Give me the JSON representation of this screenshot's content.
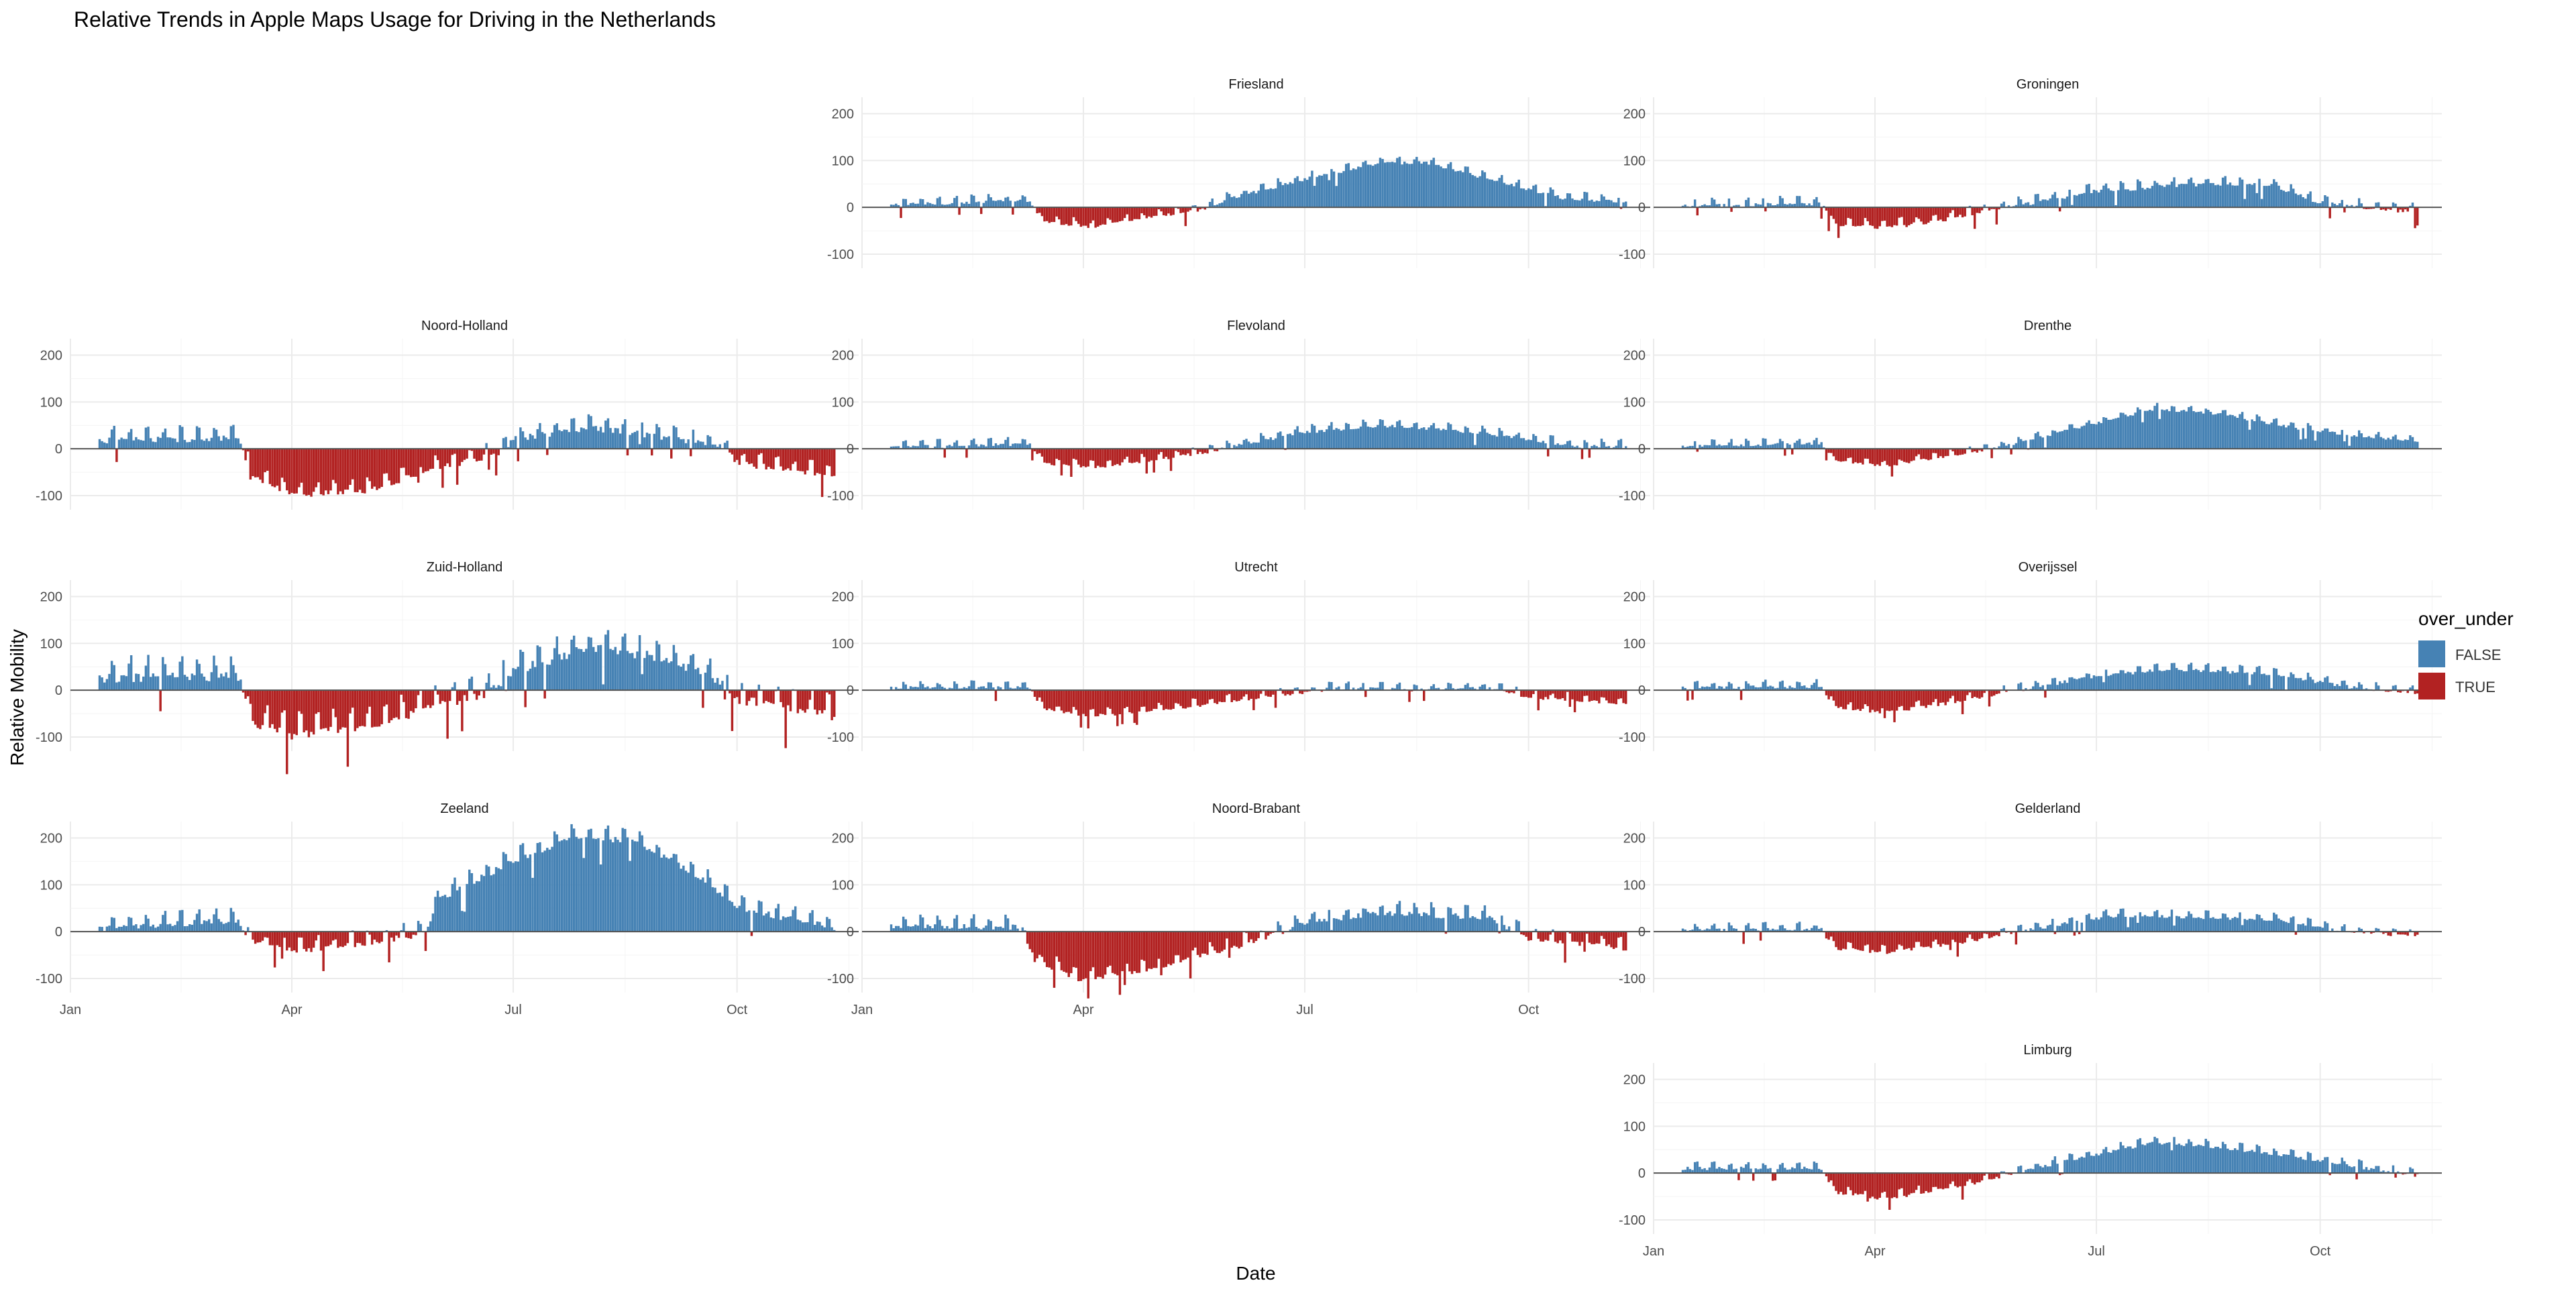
{
  "title": "Relative Trends in Apple Maps Usage for Driving in the Netherlands",
  "xlabel": "Date",
  "ylabel": "Relative Mobility",
  "legend": {
    "title": "over_under",
    "entries": [
      {
        "label": "FALSE",
        "color": "#4682B4"
      },
      {
        "label": "TRUE",
        "color": "#B22222"
      }
    ]
  },
  "x_ticks": [
    "Jan",
    "Apr",
    "Jul",
    "Oct"
  ],
  "x_tick_dates": [
    "2020-01-01",
    "2020-04-01",
    "2020-07-01",
    "2020-10-01"
  ],
  "y_ticks": [
    "-100",
    "0",
    "100",
    "200"
  ],
  "chart_data": {
    "type": "bar",
    "facet_layout": "3-column grid, 5 rows; panels without an x-axis label row share the Date axis below",
    "xlim": [
      "2020-01-01",
      "2020-11-20"
    ],
    "ylim": [
      -130,
      235
    ],
    "grid": true,
    "legend_position": "right",
    "colors": {
      "FALSE": "#4682B4",
      "TRUE": "#B22222"
    },
    "date_start": "2020-01-13",
    "date_end": "2020-11-10",
    "value_rule": "over_under = TRUE when value < 0",
    "panels": [
      {
        "name": "Friesland",
        "row": 1,
        "col": 2,
        "x_axis": false,
        "trend_points": [
          [
            "2020-01-13",
            5
          ],
          [
            "2020-03-10",
            15
          ],
          [
            "2020-03-15",
            -30
          ],
          [
            "2020-04-05",
            -42
          ],
          [
            "2020-05-01",
            -20
          ],
          [
            "2020-05-20",
            -5
          ],
          [
            "2020-06-01",
            20
          ],
          [
            "2020-07-01",
            60
          ],
          [
            "2020-08-01",
            95
          ],
          [
            "2020-08-20",
            95
          ],
          [
            "2020-09-15",
            60
          ],
          [
            "2020-10-15",
            20
          ],
          [
            "2020-11-10",
            10
          ]
        ],
        "noise": 12
      },
      {
        "name": "Groningen",
        "row": 1,
        "col": 3,
        "x_axis": false,
        "trend_points": [
          [
            "2020-01-13",
            2
          ],
          [
            "2020-03-10",
            8
          ],
          [
            "2020-03-15",
            -35
          ],
          [
            "2020-04-05",
            -45
          ],
          [
            "2020-05-01",
            -25
          ],
          [
            "2020-05-20",
            -5
          ],
          [
            "2020-06-05",
            10
          ],
          [
            "2020-07-01",
            35
          ],
          [
            "2020-08-15",
            50
          ],
          [
            "2020-09-10",
            50
          ],
          [
            "2020-10-01",
            10
          ],
          [
            "2020-10-25",
            -5
          ],
          [
            "2020-11-10",
            -10
          ]
        ],
        "noise": 14
      },
      {
        "name": "Noord-Holland",
        "row": 2,
        "col": 1,
        "x_axis": false,
        "trend_points": [
          [
            "2020-01-13",
            18
          ],
          [
            "2020-03-10",
            22
          ],
          [
            "2020-03-16",
            -60
          ],
          [
            "2020-04-01",
            -100
          ],
          [
            "2020-05-01",
            -90
          ],
          [
            "2020-06-01",
            -40
          ],
          [
            "2020-06-25",
            -10
          ],
          [
            "2020-07-01",
            20
          ],
          [
            "2020-08-01",
            45
          ],
          [
            "2020-09-01",
            25
          ],
          [
            "2020-09-25",
            5
          ],
          [
            "2020-10-01",
            -30
          ],
          [
            "2020-11-10",
            -60
          ]
        ],
        "noise": 22
      },
      {
        "name": "Flevoland",
        "row": 2,
        "col": 2,
        "x_axis": false,
        "trend_points": [
          [
            "2020-01-13",
            3
          ],
          [
            "2020-03-10",
            10
          ],
          [
            "2020-03-15",
            -30
          ],
          [
            "2020-04-05",
            -40
          ],
          [
            "2020-05-05",
            -20
          ],
          [
            "2020-05-25",
            -5
          ],
          [
            "2020-06-05",
            10
          ],
          [
            "2020-07-01",
            35
          ],
          [
            "2020-08-01",
            50
          ],
          [
            "2020-09-10",
            35
          ],
          [
            "2020-10-20",
            5
          ],
          [
            "2020-11-10",
            5
          ]
        ],
        "noise": 12
      },
      {
        "name": "Drenthe",
        "row": 2,
        "col": 3,
        "x_axis": false,
        "trend_points": [
          [
            "2020-01-13",
            5
          ],
          [
            "2020-03-10",
            12
          ],
          [
            "2020-03-15",
            -25
          ],
          [
            "2020-04-05",
            -38
          ],
          [
            "2020-05-01",
            -15
          ],
          [
            "2020-05-20",
            0
          ],
          [
            "2020-06-05",
            20
          ],
          [
            "2020-07-01",
            55
          ],
          [
            "2020-07-25",
            85
          ],
          [
            "2020-08-20",
            75
          ],
          [
            "2020-09-20",
            45
          ],
          [
            "2020-10-20",
            25
          ],
          [
            "2020-11-10",
            15
          ]
        ],
        "noise": 10
      },
      {
        "name": "Zuid-Holland",
        "row": 3,
        "col": 1,
        "x_axis": false,
        "trend_points": [
          [
            "2020-01-13",
            25
          ],
          [
            "2020-03-10",
            30
          ],
          [
            "2020-03-16",
            -70
          ],
          [
            "2020-04-01",
            -95
          ],
          [
            "2020-05-01",
            -80
          ],
          [
            "2020-06-01",
            -30
          ],
          [
            "2020-06-20",
            -10
          ],
          [
            "2020-07-01",
            40
          ],
          [
            "2020-08-01",
            90
          ],
          [
            "2020-09-01",
            70
          ],
          [
            "2020-09-25",
            15
          ],
          [
            "2020-10-01",
            -20
          ],
          [
            "2020-11-10",
            -55
          ]
        ],
        "noise": 35
      },
      {
        "name": "Utrecht",
        "row": 3,
        "col": 2,
        "x_axis": false,
        "trend_points": [
          [
            "2020-01-13",
            5
          ],
          [
            "2020-03-10",
            5
          ],
          [
            "2020-03-15",
            -40
          ],
          [
            "2020-04-05",
            -55
          ],
          [
            "2020-05-15",
            -35
          ],
          [
            "2020-06-15",
            -15
          ],
          [
            "2020-07-15",
            5
          ],
          [
            "2020-08-15",
            0
          ],
          [
            "2020-09-15",
            5
          ],
          [
            "2020-10-01",
            -15
          ],
          [
            "2020-11-10",
            -28
          ]
        ],
        "noise": 12
      },
      {
        "name": "Overijssel",
        "row": 3,
        "col": 3,
        "x_axis": false,
        "trend_points": [
          [
            "2020-01-13",
            5
          ],
          [
            "2020-03-10",
            8
          ],
          [
            "2020-03-15",
            -35
          ],
          [
            "2020-04-05",
            -48
          ],
          [
            "2020-05-01",
            -28
          ],
          [
            "2020-05-25",
            -5
          ],
          [
            "2020-06-10",
            10
          ],
          [
            "2020-07-01",
            30
          ],
          [
            "2020-08-01",
            45
          ],
          [
            "2020-09-10",
            35
          ],
          [
            "2020-10-15",
            5
          ],
          [
            "2020-11-10",
            -5
          ]
        ],
        "noise": 12
      },
      {
        "name": "Zeeland",
        "row": 4,
        "col": 1,
        "x_axis": true,
        "trend_points": [
          [
            "2020-01-13",
            5
          ],
          [
            "2020-03-10",
            25
          ],
          [
            "2020-03-15",
            -20
          ],
          [
            "2020-04-05",
            -40
          ],
          [
            "2020-05-01",
            -25
          ],
          [
            "2020-05-25",
            -5
          ],
          [
            "2020-06-01",
            70
          ],
          [
            "2020-07-01",
            150
          ],
          [
            "2020-07-25",
            200
          ],
          [
            "2020-08-20",
            195
          ],
          [
            "2020-09-15",
            120
          ],
          [
            "2020-10-01",
            50
          ],
          [
            "2020-11-10",
            8
          ]
        ],
        "noise": 22
      },
      {
        "name": "Noord-Brabant",
        "row": 4,
        "col": 2,
        "x_axis": true,
        "trend_points": [
          [
            "2020-01-13",
            10
          ],
          [
            "2020-03-05",
            10
          ],
          [
            "2020-03-12",
            -60
          ],
          [
            "2020-04-01",
            -105
          ],
          [
            "2020-05-01",
            -75
          ],
          [
            "2020-06-01",
            -35
          ],
          [
            "2020-06-20",
            -5
          ],
          [
            "2020-07-01",
            20
          ],
          [
            "2020-08-01",
            40
          ],
          [
            "2020-09-15",
            30
          ],
          [
            "2020-10-01",
            -15
          ],
          [
            "2020-11-10",
            -35
          ]
        ],
        "noise": 20
      },
      {
        "name": "Gelderland",
        "row": 4,
        "col": 3,
        "x_axis": false,
        "trend_points": [
          [
            "2020-01-13",
            3
          ],
          [
            "2020-03-10",
            5
          ],
          [
            "2020-03-15",
            -35
          ],
          [
            "2020-04-05",
            -45
          ],
          [
            "2020-05-05",
            -25
          ],
          [
            "2020-05-25",
            -5
          ],
          [
            "2020-06-10",
            10
          ],
          [
            "2020-07-10",
            35
          ],
          [
            "2020-08-15",
            30
          ],
          [
            "2020-09-15",
            25
          ],
          [
            "2020-10-10",
            0
          ],
          [
            "2020-11-10",
            -10
          ]
        ],
        "noise": 12
      },
      {
        "name": "Limburg",
        "row": 5,
        "col": 3,
        "x_axis": true,
        "trend_points": [
          [
            "2020-01-13",
            10
          ],
          [
            "2020-03-10",
            10
          ],
          [
            "2020-03-15",
            -40
          ],
          [
            "2020-04-05",
            -55
          ],
          [
            "2020-05-05",
            -30
          ],
          [
            "2020-05-25",
            -5
          ],
          [
            "2020-06-10",
            15
          ],
          [
            "2020-07-01",
            40
          ],
          [
            "2020-07-25",
            65
          ],
          [
            "2020-08-20",
            55
          ],
          [
            "2020-09-20",
            35
          ],
          [
            "2020-10-20",
            10
          ],
          [
            "2020-11-10",
            -5
          ]
        ],
        "noise": 12
      }
    ]
  }
}
